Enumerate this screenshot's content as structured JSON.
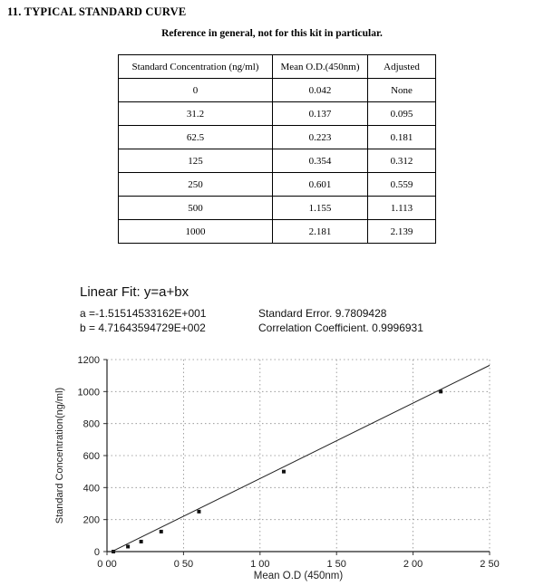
{
  "heading": "11. TYPICAL STANDARD CURVE",
  "subtitle": "Reference in general, not for this kit in particular.",
  "table": {
    "headers": [
      "Standard Concentration (ng/ml)",
      "Mean O.D.(450nm)",
      "Adjusted"
    ],
    "rows": [
      [
        "0",
        "0.042",
        "None"
      ],
      [
        "31.2",
        "0.137",
        "0.095"
      ],
      [
        "62.5",
        "0.223",
        "0.181"
      ],
      [
        "125",
        "0.354",
        "0.312"
      ],
      [
        "250",
        "0.601",
        "0.559"
      ],
      [
        "500",
        "1.155",
        "1.113"
      ],
      [
        "1000",
        "2.181",
        "2.139"
      ]
    ]
  },
  "fit": {
    "title": "Linear Fit: y=a+bx",
    "a_label": "a =-1.51514533162E+001",
    "std_error": "Standard Error. 9.7809428",
    "b_label": "b = 4.71643594729E+002",
    "corr_coeff": "Correlation Coefficient. 0.9996931"
  },
  "chart_data": {
    "type": "scatter",
    "title": "",
    "xlabel": "Mean O.D (450nm)",
    "ylabel": "Standard Concentration(ng/ml)",
    "x": [
      0.042,
      0.137,
      0.223,
      0.354,
      0.601,
      1.155,
      2.181
    ],
    "y": [
      0,
      31.2,
      62.5,
      125,
      250,
      500,
      1000
    ],
    "fit": {
      "a": -15.1514533162,
      "b": 471.643594729
    },
    "xlim": [
      0,
      2.5
    ],
    "ylim": [
      0,
      1200
    ],
    "x_tick_values": [
      0,
      0.5,
      1.0,
      1.5,
      2.0,
      2.5
    ],
    "x_ticks": [
      "0 00",
      "0 50",
      "1 00",
      "1 50",
      "2 00",
      "2 50"
    ],
    "y_tick_values": [
      0,
      200,
      400,
      600,
      800,
      1000,
      1200
    ],
    "y_ticks": [
      "0",
      "200",
      "400",
      "600",
      "800",
      "1000",
      "1200"
    ],
    "grid": true,
    "line": true,
    "legend": "none"
  }
}
